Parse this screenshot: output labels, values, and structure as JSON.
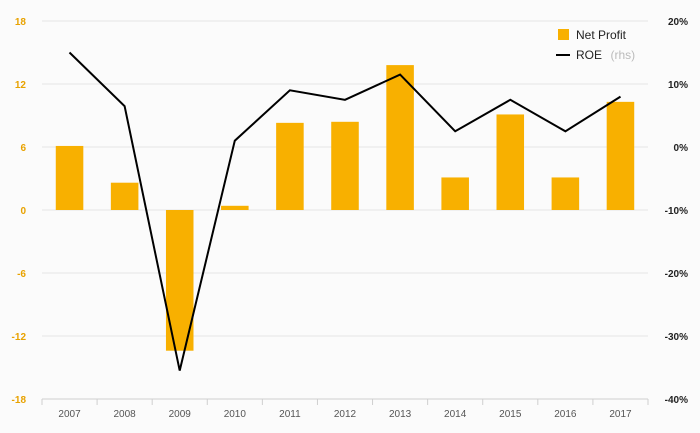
{
  "colors": {
    "bar": "#f8b000",
    "line": "#000000",
    "left_tick": "#e8a200",
    "right_tick": "#222222",
    "grid": "#e6e6e6",
    "x_tick": "#555555"
  },
  "chart_data": {
    "type": "bar",
    "categories": [
      "2007",
      "2008",
      "2009",
      "2010",
      "2011",
      "2012",
      "2013",
      "2014",
      "2015",
      "2016",
      "2017"
    ],
    "series": [
      {
        "name": "Net Profit",
        "type": "bar",
        "axis": "left",
        "values": [
          6.1,
          2.6,
          -13.4,
          0.4,
          8.3,
          8.4,
          13.8,
          3.1,
          9.1,
          3.1,
          10.3
        ]
      },
      {
        "name": "ROE",
        "name_suffix": "(rhs)",
        "type": "line",
        "axis": "right",
        "values": [
          15,
          6.5,
          -35.5,
          1,
          9,
          7.5,
          11.5,
          2.5,
          7.5,
          2.5,
          8
        ]
      }
    ],
    "y_left": {
      "ylim": [
        -18,
        18
      ],
      "ticks": [
        "18",
        "12",
        "6",
        "0",
        "-6",
        "-12",
        "-18"
      ],
      "tick_values": [
        18,
        12,
        6,
        0,
        -6,
        -12,
        -18
      ]
    },
    "y_right": {
      "ylim": [
        -40,
        20
      ],
      "ticks": [
        "20%",
        "10%",
        "0%",
        "-10%",
        "-20%",
        "-30%",
        "-40%"
      ],
      "tick_values": [
        20,
        10,
        0,
        -10,
        -20,
        -30,
        -40
      ]
    },
    "grid": true,
    "legend_position": "top-right",
    "title": "",
    "xlabel": "",
    "ylabel": ""
  }
}
